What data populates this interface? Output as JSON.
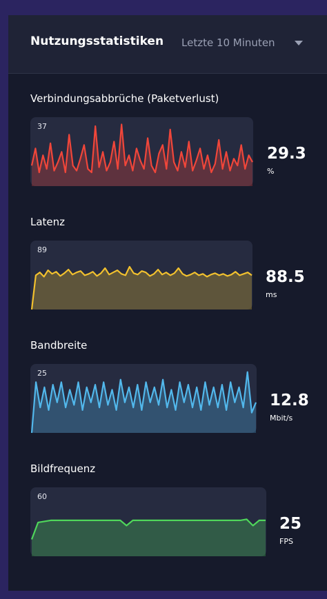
{
  "header": {
    "title": "Nutzungsstatistiken",
    "range": "Letzte 10 Minuten"
  },
  "metrics": [
    {
      "title": "Verbindungsabbrüche (Paketverlust)",
      "max": 37,
      "current": "29.3",
      "unit": "%",
      "color": "#f0463a",
      "values": [
        12,
        22,
        8,
        18,
        10,
        25,
        9,
        14,
        20,
        8,
        30,
        12,
        9,
        16,
        24,
        10,
        8,
        35,
        11,
        20,
        9,
        14,
        26,
        10,
        36,
        12,
        18,
        9,
        22,
        15,
        10,
        28,
        12,
        8,
        19,
        24,
        10,
        33,
        14,
        9,
        20,
        11,
        26,
        9,
        15,
        22,
        10,
        18,
        8,
        13,
        27,
        10,
        20,
        9,
        16,
        12,
        24,
        10,
        18,
        14
      ]
    },
    {
      "title": "Latenz",
      "max": 89,
      "current": "88.5",
      "unit": "ms",
      "color": "#f2c12e",
      "values": [
        0,
        48,
        52,
        46,
        55,
        50,
        53,
        47,
        51,
        56,
        49,
        52,
        54,
        48,
        50,
        53,
        47,
        51,
        58,
        49,
        52,
        55,
        50,
        48,
        60,
        51,
        49,
        54,
        52,
        47,
        50,
        56,
        49,
        52,
        48,
        51,
        58,
        50,
        47,
        49,
        52,
        48,
        50,
        46,
        49,
        51,
        48,
        50,
        47,
        49,
        53,
        48,
        50,
        52,
        48
      ]
    },
    {
      "title": "Bandbreite",
      "max": 25,
      "current": "12.8",
      "unit": "Mbit/s",
      "color": "#52b8ec",
      "values": [
        0,
        20,
        10,
        18,
        9,
        19,
        12,
        20,
        10,
        17,
        11,
        20,
        9,
        18,
        12,
        19,
        10,
        20,
        11,
        17,
        9,
        21,
        12,
        18,
        10,
        19,
        9,
        20,
        12,
        18,
        11,
        21,
        10,
        17,
        9,
        20,
        12,
        19,
        10,
        18,
        9,
        20,
        11,
        18,
        10,
        19,
        9,
        20,
        12,
        18,
        10,
        24,
        8,
        12
      ]
    },
    {
      "title": "Bildfrequenz",
      "max": 60,
      "current": "25",
      "unit": "FPS",
      "color": "#4fd65b",
      "values": [
        16,
        32,
        33,
        34,
        34,
        34,
        34,
        34,
        34,
        34,
        34,
        34,
        34,
        34,
        34,
        29,
        34,
        34,
        34,
        34,
        34,
        34,
        34,
        34,
        34,
        34,
        34,
        34,
        34,
        34,
        34,
        34,
        34,
        34,
        35,
        29,
        34,
        34
      ]
    }
  ]
}
